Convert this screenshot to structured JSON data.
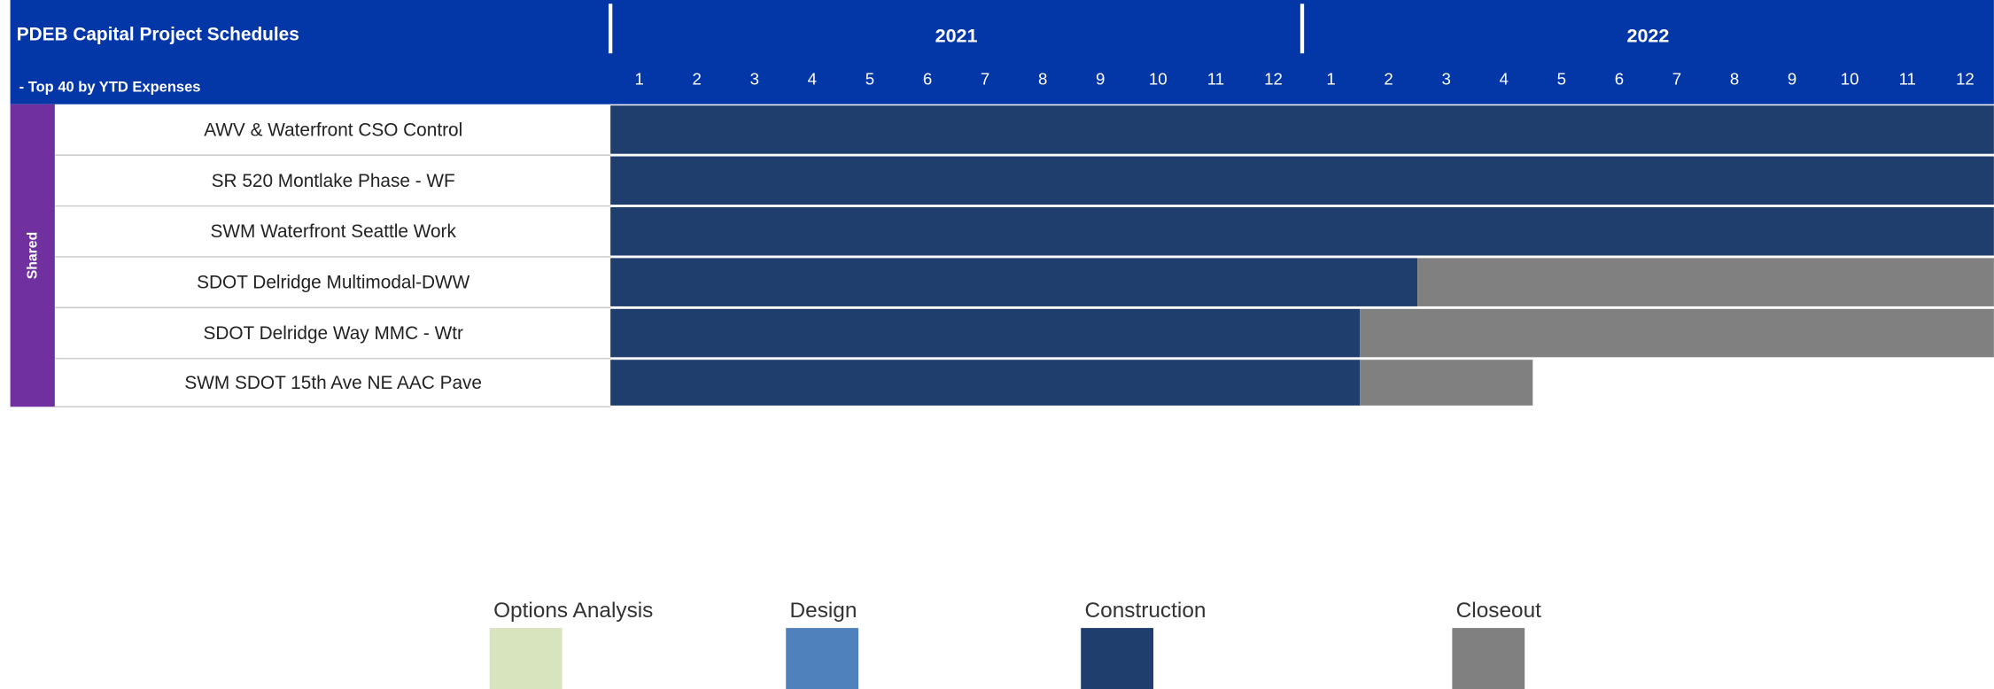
{
  "chart_data": {
    "type": "gantt",
    "title": "PDEB Capital Project Schedules",
    "subtitle": "- Top 40 by YTD Expenses",
    "group": "Shared",
    "years": [
      {
        "label": "2021",
        "start": 1,
        "end": 12
      },
      {
        "label": "2022",
        "start": 13,
        "end": 24
      }
    ],
    "xlim": [
      0.5,
      24.5
    ],
    "xticks": [
      1,
      2,
      3,
      4,
      5,
      6,
      7,
      8,
      9,
      10,
      11,
      12,
      {
        "value": 13,
        "label": "1"
      },
      {
        "value": 14,
        "label": "2"
      },
      {
        "value": 15,
        "label": "3"
      },
      {
        "value": 16,
        "label": "4"
      },
      {
        "value": 17,
        "label": "5"
      },
      {
        "value": 18,
        "label": "6"
      },
      {
        "value": 19,
        "label": "7"
      },
      {
        "value": 20,
        "label": "8"
      },
      {
        "value": 21,
        "label": "9"
      },
      {
        "value": 22,
        "label": "10"
      },
      {
        "value": 23,
        "label": "11"
      },
      {
        "value": 24,
        "label": "12"
      }
    ],
    "tasks": [
      {
        "name": "AWV & Waterfront CSO Control",
        "phases": [
          {
            "phase": "Construction",
            "start": 1,
            "end": 24
          }
        ]
      },
      {
        "name": "SR 520 Montlake Phase - WF",
        "phases": [
          {
            "phase": "Construction",
            "start": 1,
            "end": 24
          }
        ]
      },
      {
        "name": "SWM Waterfront Seattle Work",
        "phases": [
          {
            "phase": "Construction",
            "start": 1,
            "end": 24
          }
        ]
      },
      {
        "name": "SDOT Delridge Multimodal-DWW",
        "phases": [
          {
            "phase": "Construction",
            "start": 1,
            "end": 14
          },
          {
            "phase": "Closeout",
            "start": 15,
            "end": 24
          }
        ]
      },
      {
        "name": "SDOT Delridge Way MMC - Wtr",
        "phases": [
          {
            "phase": "Construction",
            "start": 1,
            "end": 13
          },
          {
            "phase": "Closeout",
            "start": 14,
            "end": 24
          }
        ]
      },
      {
        "name": "SWM SDOT 15th Ave NE AAC Pave",
        "phases": [
          {
            "phase": "Construction",
            "start": 1,
            "end": 13
          },
          {
            "phase": "Closeout",
            "start": 14,
            "end": 16
          }
        ]
      }
    ],
    "legend": [
      {
        "name": "Options Analysis",
        "color": "#d7e4bd"
      },
      {
        "name": "Design",
        "color": "#4f81bd"
      },
      {
        "name": "Construction",
        "color": "#1f3e6e"
      },
      {
        "name": "Closeout",
        "color": "#808080"
      }
    ]
  }
}
